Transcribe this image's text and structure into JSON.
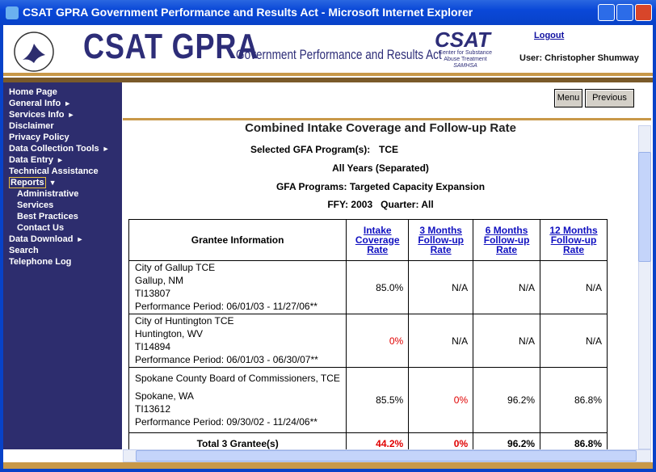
{
  "window": {
    "title": "CSAT GPRA Government Performance and Results Act - Microsoft Internet Explorer"
  },
  "header": {
    "logo_text": "CSAT GPRA",
    "subtitle": "Government Performance and Results Act",
    "csat_logo": "CSAT",
    "csat_caption_1": "Center for Substance",
    "csat_caption_2": "Abuse Treatment",
    "samhsa": "SAMHSA",
    "logout": "Logout",
    "user": "User: Christopher Shumway"
  },
  "nav": [
    {
      "label": "Home Page"
    },
    {
      "label": "General Info",
      "arrow": "►"
    },
    {
      "label": "Services Info",
      "arrow": "►"
    },
    {
      "label": "Disclaimer"
    },
    {
      "label": "Privacy Policy"
    },
    {
      "label": "Data Collection Tools",
      "arrow": "►"
    },
    {
      "label": "Data Entry",
      "arrow": "►"
    },
    {
      "label": "Technical Assistance"
    },
    {
      "label": "Reports",
      "arrow": "▼",
      "selected": true
    },
    {
      "label": "Administrative",
      "sub": true
    },
    {
      "label": "Services",
      "sub": true
    },
    {
      "label": "Best Practices",
      "sub": true
    },
    {
      "label": "Contact Us",
      "sub": true
    },
    {
      "label": "Data Download",
      "arrow": "►"
    },
    {
      "label": "Search"
    },
    {
      "label": "Telephone Log"
    }
  ],
  "toolbar": {
    "menu": "Menu",
    "previous": "Previous"
  },
  "report": {
    "title": "Combined Intake Coverage and Follow-up Rate",
    "program_label": "Selected GFA Program(s):",
    "program": "TCE",
    "years": "All Years (Separated)",
    "gfa_programs": "GFA Programs: Targeted Capacity Expansion",
    "period": "FFY: 2003   Quarter: All"
  },
  "table": {
    "headers": [
      "Grantee Information",
      "Intake Coverage Rate",
      "3 Months Follow-up Rate",
      "6 Months Follow-up Rate",
      "12 Months Follow-up Rate"
    ],
    "rows": [
      {
        "grantee": [
          "City of Gallup TCE",
          "Gallup, NM",
          "TI13807",
          "Performance Period: 06/01/03 - 11/27/06**"
        ],
        "cells": [
          {
            "text": "85.0%"
          },
          {
            "text": "N/A"
          },
          {
            "text": "N/A"
          },
          {
            "text": "N/A"
          }
        ]
      },
      {
        "grantee": [
          "City of Huntington TCE",
          "Huntington, WV",
          "TI14894",
          "Performance Period: 06/01/03 - 06/30/07**"
        ],
        "cells": [
          {
            "text": "0%",
            "color": "#e00000"
          },
          {
            "text": "N/A"
          },
          {
            "text": "N/A"
          },
          {
            "text": "N/A"
          }
        ]
      },
      {
        "grantee": [
          "Spokane County Board of Commissioners, TCE",
          "Spokane, WA",
          "TI13612",
          "Performance Period: 09/30/02 - 11/24/06**"
        ],
        "cells": [
          {
            "text": "85.5%"
          },
          {
            "text": "0%",
            "color": "#e00000"
          },
          {
            "text": "96.2%"
          },
          {
            "text": "86.8%"
          }
        ]
      }
    ],
    "total": {
      "label": "Total 3 Grantee(s)",
      "cells": [
        {
          "text": "44.2%",
          "color": "#e00000"
        },
        {
          "text": "0%",
          "color": "#e00000"
        },
        {
          "text": "96.2%"
        },
        {
          "text": "86.8%"
        }
      ]
    }
  }
}
